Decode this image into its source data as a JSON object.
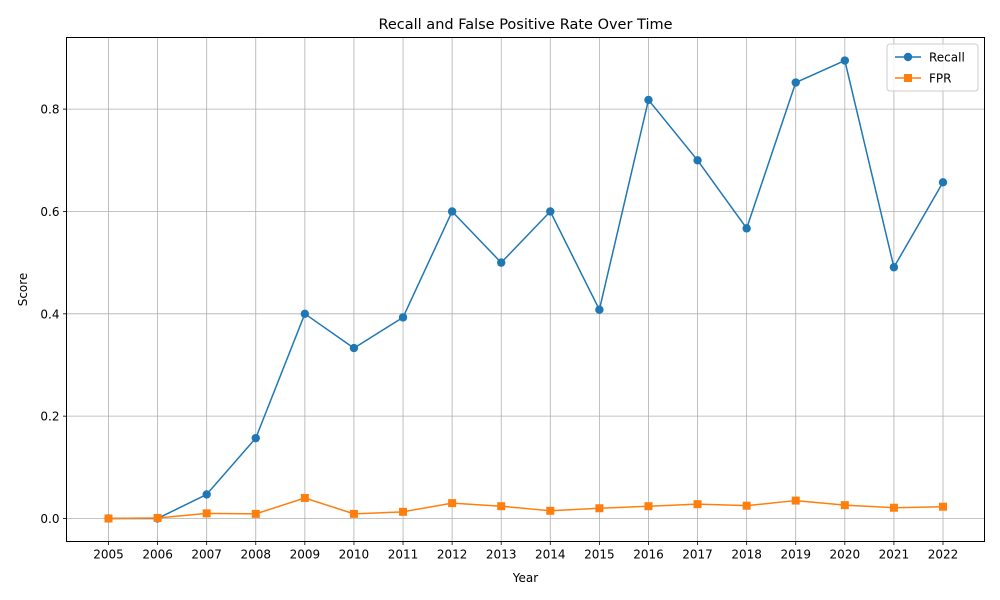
{
  "chart_data": {
    "type": "line",
    "title": "Recall and False Positive Rate Over Time",
    "xlabel": "Year",
    "ylabel": "Score",
    "categories": [
      "2005",
      "2006",
      "2007",
      "2008",
      "2009",
      "2010",
      "2011",
      "2012",
      "2013",
      "2014",
      "2015",
      "2016",
      "2017",
      "2018",
      "2019",
      "2020",
      "2021",
      "2022"
    ],
    "ylim": [
      -0.045,
      0.94
    ],
    "yticks": [
      0.0,
      0.2,
      0.4,
      0.6,
      0.8
    ],
    "ytick_labels": [
      "0.0",
      "0.2",
      "0.4",
      "0.6",
      "0.8"
    ],
    "grid": true,
    "legend_position": "top-right",
    "series": [
      {
        "name": "Recall",
        "color": "#1f77b4",
        "marker": "circle",
        "values": [
          0.0,
          0.0,
          0.047,
          0.157,
          0.4,
          0.333,
          0.393,
          0.6,
          0.5,
          0.6,
          0.408,
          0.818,
          0.7,
          0.567,
          0.852,
          0.895,
          0.491,
          0.657
        ]
      },
      {
        "name": "FPR",
        "color": "#ff7f0e",
        "marker": "square",
        "values": [
          0.0,
          0.001,
          0.01,
          0.009,
          0.04,
          0.009,
          0.013,
          0.03,
          0.024,
          0.015,
          0.02,
          0.024,
          0.028,
          0.025,
          0.035,
          0.026,
          0.021,
          0.023
        ]
      }
    ]
  }
}
